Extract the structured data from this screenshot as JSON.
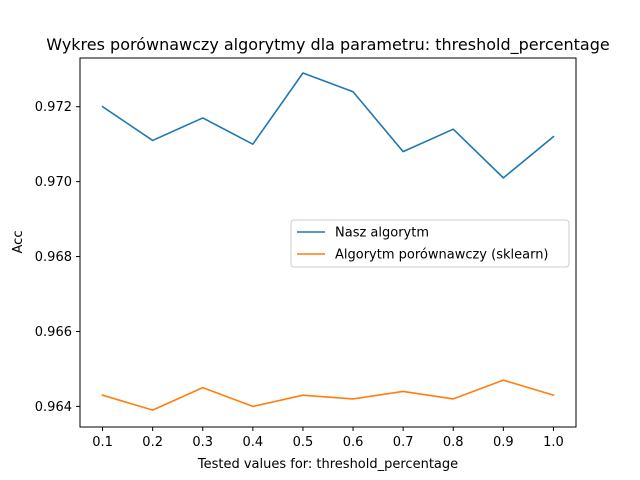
{
  "chart_data": {
    "type": "line",
    "title": "Wykres porównawczy algorytmy dla parametru: threshold_percentage",
    "xlabel": "Tested values for: threshold_percentage",
    "ylabel": "Acc",
    "x": [
      0.1,
      0.2,
      0.3,
      0.4,
      0.5,
      0.6,
      0.7,
      0.8,
      0.9,
      1.0
    ],
    "xticks": [
      "0.1",
      "0.2",
      "0.3",
      "0.4",
      "0.5",
      "0.6",
      "0.7",
      "0.8",
      "0.9",
      "1.0"
    ],
    "yticks": [
      "0.964",
      "0.966",
      "0.968",
      "0.970",
      "0.972"
    ],
    "ytick_values": [
      0.964,
      0.966,
      0.968,
      0.97,
      0.972
    ],
    "xlim": [
      0.055,
      1.045
    ],
    "ylim": [
      0.96345,
      0.9733
    ],
    "grid": false,
    "legend_position": "center-right",
    "series": [
      {
        "name": "Nasz algorytm",
        "color": "#1f77b4",
        "values": [
          0.972,
          0.9711,
          0.9717,
          0.971,
          0.9729,
          0.9724,
          0.9708,
          0.9714,
          0.9701,
          0.9712
        ]
      },
      {
        "name": "Algorytm porównawczy (sklearn)",
        "color": "#ff7f0e",
        "values": [
          0.9643,
          0.9639,
          0.9645,
          0.964,
          0.9643,
          0.9642,
          0.9644,
          0.9642,
          0.9647,
          0.9643
        ]
      }
    ]
  }
}
